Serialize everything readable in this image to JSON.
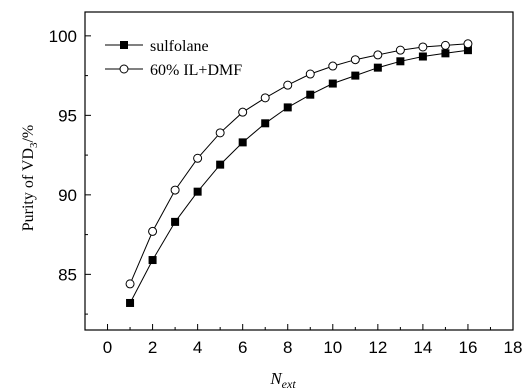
{
  "chart_data": {
    "type": "line",
    "xlabel_main": "N",
    "xlabel_sub": "ext",
    "ylabel_main": "Purity of VD",
    "ylabel_sub": "3",
    "ylabel_tail": "/%",
    "xlim": [
      -1,
      18
    ],
    "ylim": [
      81.5,
      101.5
    ],
    "xticks": [
      0,
      2,
      4,
      6,
      8,
      10,
      12,
      14,
      16,
      18
    ],
    "yticks": [
      85,
      90,
      95,
      100
    ],
    "grid": false,
    "legend_position": "top-left",
    "series": [
      {
        "name": "sulfolane",
        "marker": "filled-square",
        "color": "#000000",
        "x": [
          1,
          2,
          3,
          4,
          5,
          6,
          7,
          8,
          9,
          10,
          11,
          12,
          13,
          14,
          15,
          16
        ],
        "y": [
          83.2,
          85.9,
          88.3,
          90.2,
          91.9,
          93.3,
          94.5,
          95.5,
          96.3,
          97.0,
          97.5,
          98.0,
          98.4,
          98.7,
          98.9,
          99.1
        ]
      },
      {
        "name": "60% IL+DMF",
        "marker": "open-circle",
        "color": "#000000",
        "x": [
          1,
          2,
          3,
          4,
          5,
          6,
          7,
          8,
          9,
          10,
          11,
          12,
          13,
          14,
          15,
          16
        ],
        "y": [
          84.4,
          87.7,
          90.3,
          92.3,
          93.9,
          95.2,
          96.1,
          96.9,
          97.6,
          98.1,
          98.5,
          98.8,
          99.1,
          99.3,
          99.4,
          99.5
        ]
      }
    ]
  }
}
